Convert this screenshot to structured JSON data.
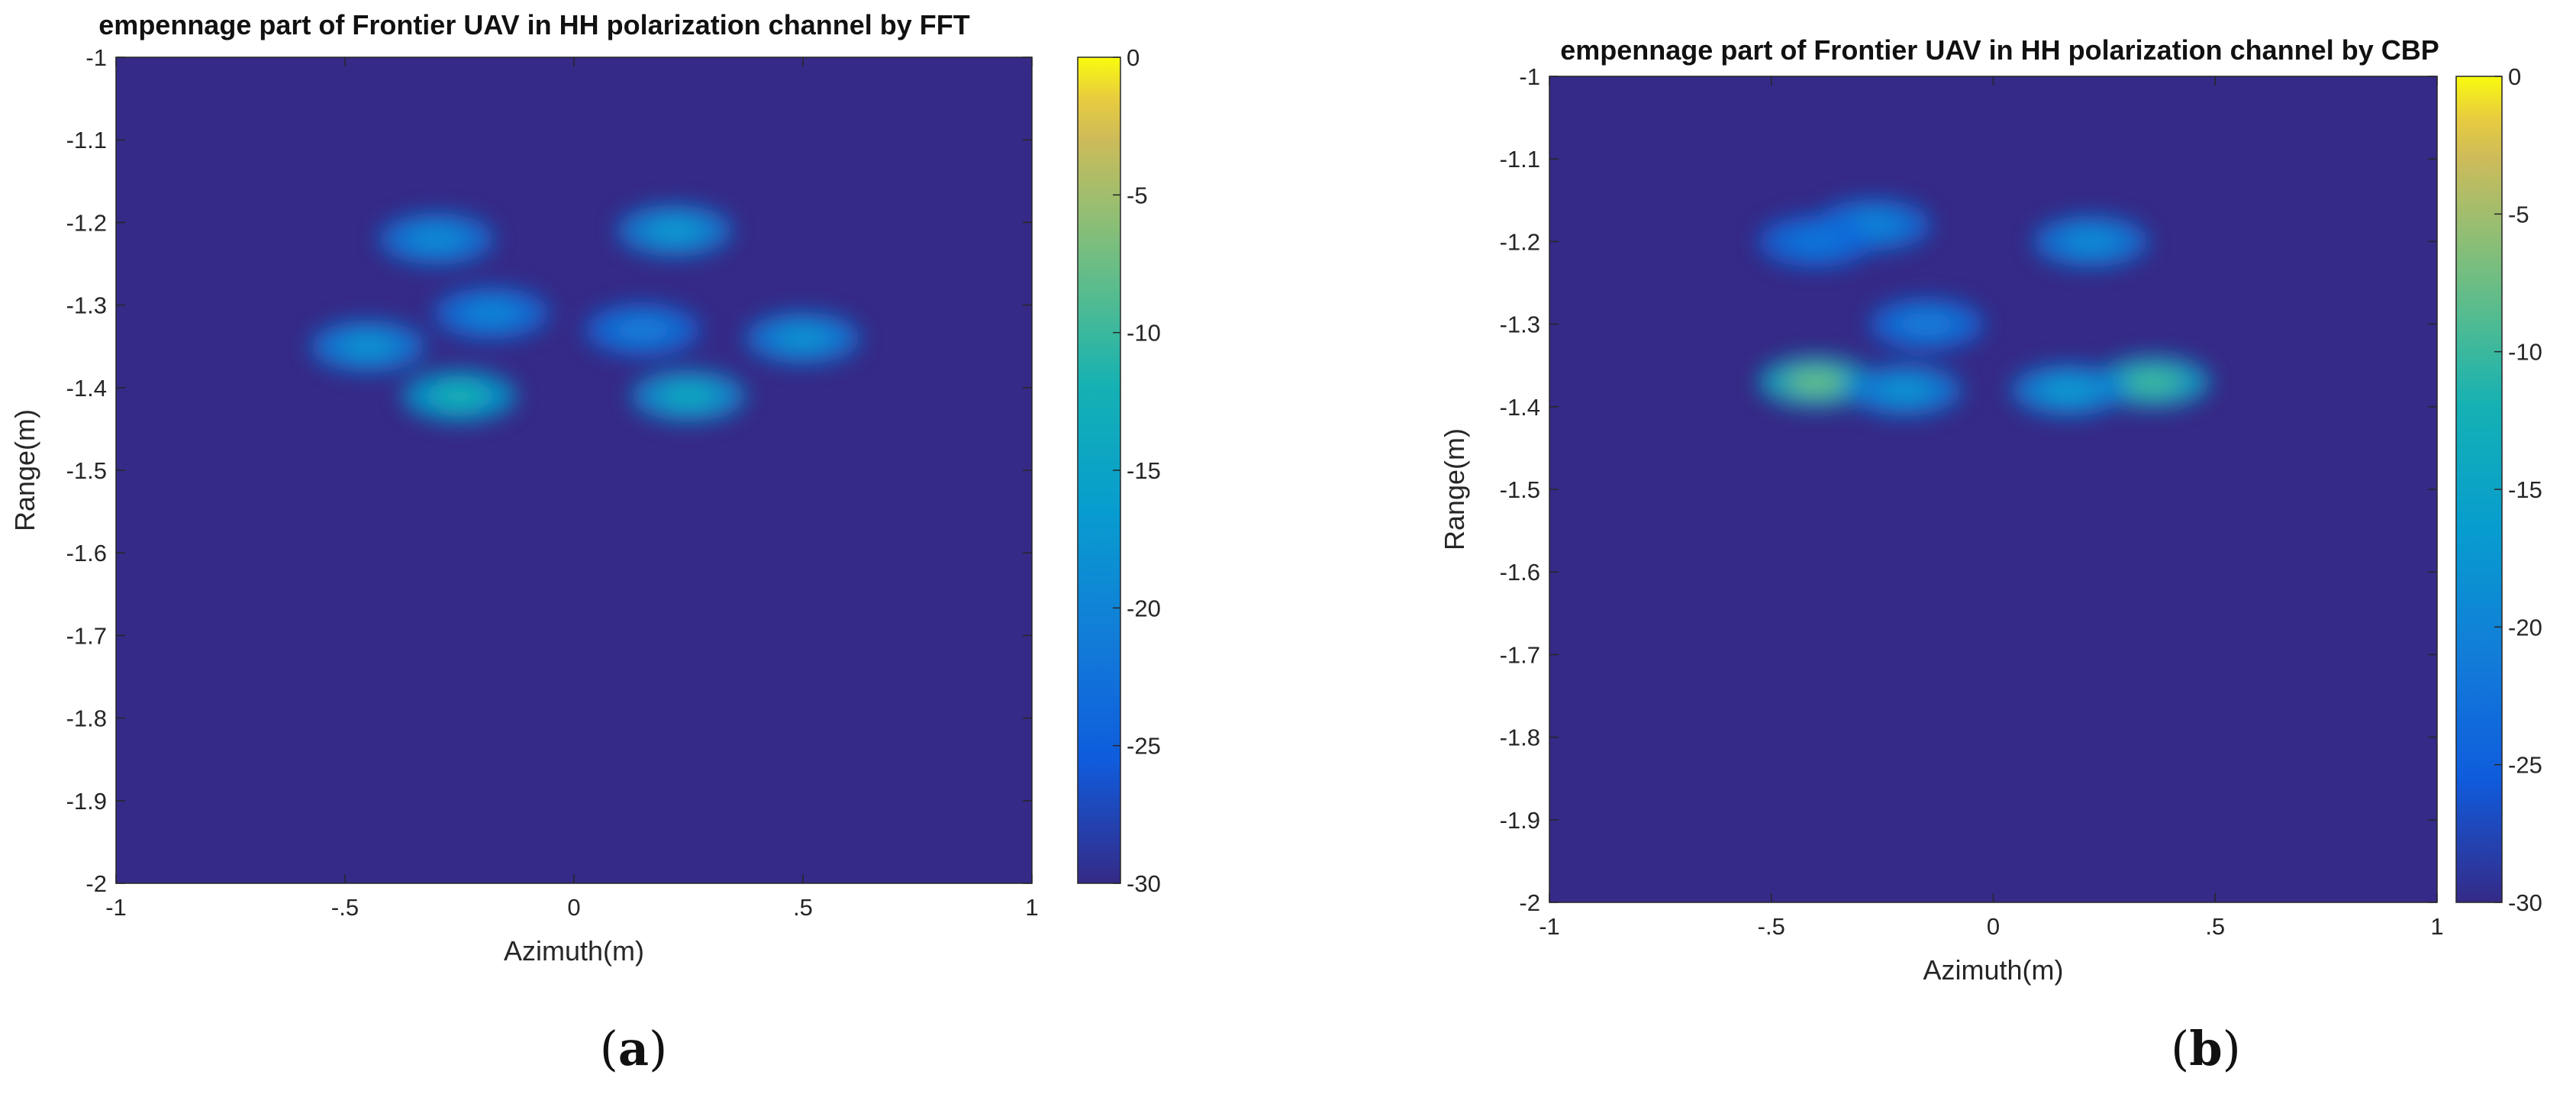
{
  "chart_data": [
    {
      "type": "heatmap",
      "title": "empennage part of Frontier UAV in HH polarization channel by FFT",
      "xlabel": "Azimuth(m)",
      "ylabel": "Range(m)",
      "xlim": [
        -1,
        1
      ],
      "ylim": [
        -2,
        -1
      ],
      "y_reversed": true,
      "x_ticks": [
        -1,
        -0.5,
        0,
        0.5,
        1
      ],
      "y_ticks": [
        -1,
        -1.1,
        -1.2,
        -1.3,
        -1.4,
        -1.5,
        -1.6,
        -1.7,
        -1.8,
        -1.9,
        -2
      ],
      "colorbar": {
        "range": [
          -30,
          0
        ],
        "ticks": [
          0,
          -5,
          -10,
          -15,
          -20,
          -25,
          -30
        ],
        "colormap": "parula"
      },
      "background_value": -30,
      "hot_spots": [
        {
          "x": -0.45,
          "y": -1.35,
          "value": -18
        },
        {
          "x": -0.25,
          "y": -1.41,
          "value": -12
        },
        {
          "x": -0.3,
          "y": -1.22,
          "value": -19
        },
        {
          "x": -0.18,
          "y": -1.31,
          "value": -20
        },
        {
          "x": 0.22,
          "y": -1.21,
          "value": -17
        },
        {
          "x": 0.25,
          "y": -1.41,
          "value": -14
        },
        {
          "x": 0.5,
          "y": -1.34,
          "value": -18
        },
        {
          "x": 0.15,
          "y": -1.33,
          "value": -21
        }
      ],
      "caption": "(a)"
    },
    {
      "type": "heatmap",
      "title": "empennage part of Frontier UAV in HH polarization channel by CBP",
      "xlabel": "Azimuth(m)",
      "ylabel": "Range(m)",
      "xlim": [
        -1,
        1
      ],
      "ylim": [
        -2,
        -1
      ],
      "y_reversed": true,
      "x_ticks": [
        -1,
        -0.5,
        0,
        0.5,
        1
      ],
      "y_ticks": [
        -1,
        -1.1,
        -1.2,
        -1.3,
        -1.4,
        -1.5,
        -1.6,
        -1.7,
        -1.8,
        -1.9,
        -2
      ],
      "colorbar": {
        "range": [
          -30,
          0
        ],
        "ticks": [
          0,
          -5,
          -10,
          -15,
          -20,
          -25,
          -30
        ],
        "colormap": "parula"
      },
      "background_value": -30,
      "hot_spots": [
        {
          "x": -0.4,
          "y": -1.37,
          "value": -8
        },
        {
          "x": 0.36,
          "y": -1.37,
          "value": -10
        },
        {
          "x": -0.2,
          "y": -1.38,
          "value": -18
        },
        {
          "x": 0.17,
          "y": -1.38,
          "value": -17
        },
        {
          "x": -0.27,
          "y": -1.18,
          "value": -20
        },
        {
          "x": 0.22,
          "y": -1.2,
          "value": -19
        },
        {
          "x": -0.4,
          "y": -1.2,
          "value": -22
        },
        {
          "x": -0.15,
          "y": -1.3,
          "value": -21
        }
      ],
      "caption": "(b)"
    }
  ]
}
